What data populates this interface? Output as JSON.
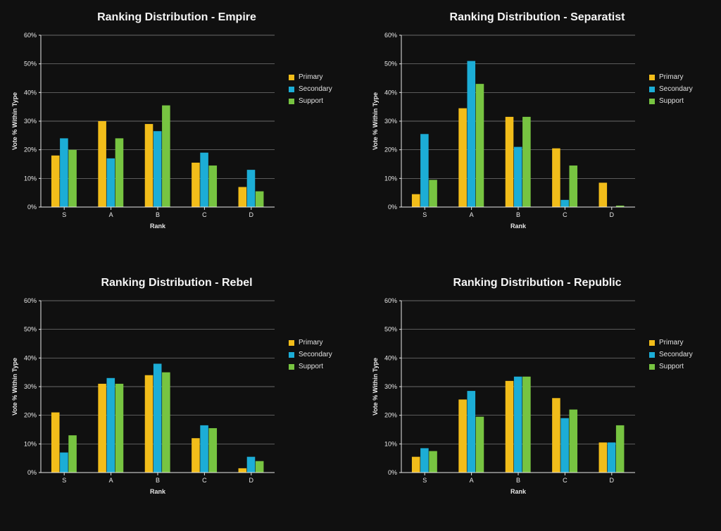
{
  "global": {
    "background_color": "#101010",
    "text_color": "#f0f0f0",
    "grid_color": "#d8d8d8",
    "axis_color": "#e8e8e8",
    "title_fontsize": 16,
    "tick_fontsize": 9,
    "label_fontsize": 9,
    "legend_fontsize": 10,
    "xlabel": "Rank",
    "ylabel": "Vote % Within Type",
    "categories": [
      "S",
      "A",
      "B",
      "C",
      "D"
    ],
    "series_names": [
      "Primary",
      "Secondary",
      "Support"
    ],
    "series_colors": [
      "#f2bd1a",
      "#1cadd6",
      "#77c441"
    ],
    "ylim": [
      0,
      60
    ],
    "ytick_step": 10,
    "ytick_labels": [
      "0%",
      "10%",
      "20%",
      "30%",
      "40%",
      "50%",
      "60%"
    ]
  },
  "panels": [
    {
      "title": "Ranking Distribution - Empire",
      "type": "bar",
      "series": [
        {
          "name": "Primary",
          "values": [
            18,
            30,
            29,
            15.5,
            7
          ]
        },
        {
          "name": "Secondary",
          "values": [
            24,
            17,
            26.5,
            19,
            13
          ]
        },
        {
          "name": "Support",
          "values": [
            20,
            24,
            35.5,
            14.5,
            5.5
          ]
        }
      ]
    },
    {
      "title": "Ranking Distribution - Separatist",
      "type": "bar",
      "series": [
        {
          "name": "Primary",
          "values": [
            4.5,
            34.5,
            31.5,
            20.5,
            8.5
          ]
        },
        {
          "name": "Secondary",
          "values": [
            25.5,
            51,
            21,
            2.5,
            0
          ]
        },
        {
          "name": "Support",
          "values": [
            9.5,
            43,
            31.5,
            14.5,
            0.5
          ]
        }
      ]
    },
    {
      "title": "Ranking Distribution - Rebel",
      "type": "bar",
      "series": [
        {
          "name": "Primary",
          "values": [
            21,
            31,
            34,
            12,
            1.5
          ]
        },
        {
          "name": "Secondary",
          "values": [
            7,
            33,
            38,
            16.5,
            5.5
          ]
        },
        {
          "name": "Support",
          "values": [
            13,
            31,
            35,
            15.5,
            4
          ]
        }
      ]
    },
    {
      "title": "Ranking Distribution - Republic",
      "type": "bar",
      "series": [
        {
          "name": "Primary",
          "values": [
            5.5,
            25.5,
            32,
            26,
            10.5
          ]
        },
        {
          "name": "Secondary",
          "values": [
            8.5,
            28.5,
            33.5,
            19,
            10.5
          ]
        },
        {
          "name": "Support",
          "values": [
            7.5,
            19.5,
            33.5,
            22,
            16.5
          ]
        }
      ]
    }
  ]
}
